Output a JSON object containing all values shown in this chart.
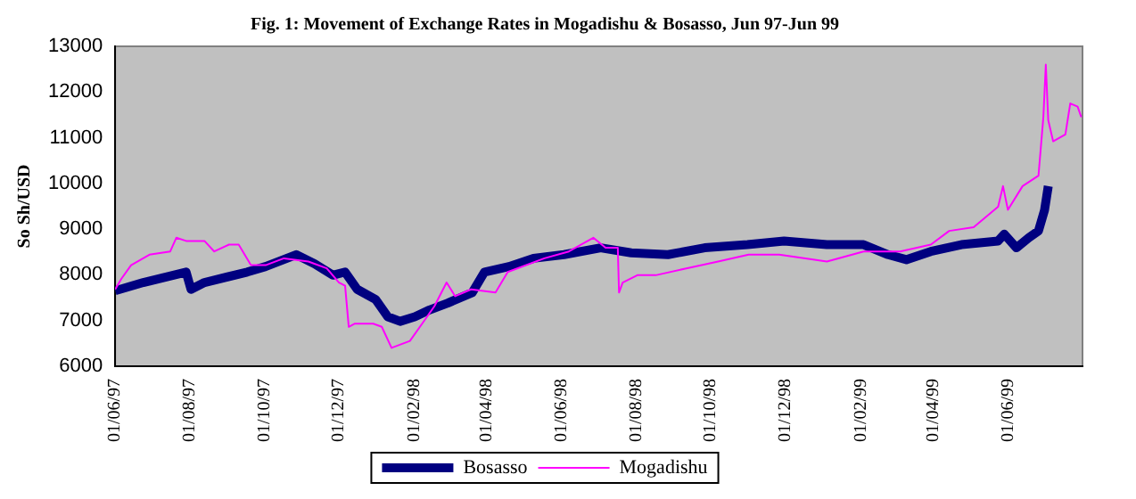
{
  "chart_data": {
    "type": "line",
    "title": "Fig. 1: Movement of Exchange Rates in Mogadishu & Bosasso, Jun 97-Jun 99",
    "ylabel": "So Sh/USD",
    "xlim": [
      "1997-06-01",
      "1999-08-01"
    ],
    "xticks": [
      {
        "value": "1997-06-01",
        "label": "01/06/97"
      },
      {
        "value": "1997-08-01",
        "label": "01/08/97"
      },
      {
        "value": "1997-10-01",
        "label": "01/10/97"
      },
      {
        "value": "1997-12-01",
        "label": "01/12/97"
      },
      {
        "value": "1998-02-01",
        "label": "01/02/98"
      },
      {
        "value": "1998-04-01",
        "label": "01/04/98"
      },
      {
        "value": "1998-06-01",
        "label": "01/06/98"
      },
      {
        "value": "1998-08-01",
        "label": "01/08/98"
      },
      {
        "value": "1998-10-01",
        "label": "01/10/98"
      },
      {
        "value": "1998-12-01",
        "label": "01/12/98"
      },
      {
        "value": "1999-02-01",
        "label": "01/02/99"
      },
      {
        "value": "1999-04-01",
        "label": "01/04/99"
      },
      {
        "value": "1999-06-01",
        "label": "01/06/99"
      },
      {
        "value": "1999-08-01",
        "label": null
      }
    ],
    "ylim": [
      6000,
      13000
    ],
    "yticks": [
      6000,
      7000,
      8000,
      9000,
      10000,
      11000,
      12000,
      13000
    ],
    "grid": false,
    "legend": "bottom",
    "marker": "none",
    "line_style": "solid",
    "series": [
      {
        "name": "Bosasso",
        "color": "#000080",
        "x": [
          "1997-06-01",
          "1997-06-24",
          "1997-07-29",
          "1997-08-02",
          "1997-08-13",
          "1997-09-17",
          "1997-10-02",
          "1997-10-27",
          "1997-11-11",
          "1997-11-26",
          "1997-12-06",
          "1997-12-16",
          "1997-12-31",
          "1998-01-10",
          "1998-01-20",
          "1998-02-01",
          "1998-02-13",
          "1998-02-28",
          "1998-03-20",
          "1998-03-30",
          "1998-04-19",
          "1998-05-09",
          "1998-06-03",
          "1998-07-03",
          "1998-07-28",
          "1998-08-27",
          "1998-09-26",
          "1998-10-31",
          "1998-11-30",
          "1999-01-04",
          "1999-02-03",
          "1999-02-23",
          "1999-03-10",
          "1999-03-30",
          "1999-04-24",
          "1999-05-24",
          "1999-05-29",
          "1999-06-08",
          "1999-06-18",
          "1999-06-26",
          "1999-07-01",
          "1999-07-04"
        ],
        "values": [
          7650,
          7830,
          8060,
          7680,
          7830,
          8060,
          8180,
          8440,
          8240,
          7990,
          8060,
          7680,
          7460,
          7080,
          6980,
          7080,
          7230,
          7380,
          7610,
          8060,
          8180,
          8360,
          8440,
          8590,
          8480,
          8440,
          8590,
          8660,
          8740,
          8660,
          8660,
          8440,
          8330,
          8510,
          8660,
          8740,
          8890,
          8590,
          8810,
          8960,
          9420,
          9940
        ]
      },
      {
        "name": "Mogadishu",
        "color": "#ff00ff",
        "x": [
          "1997-06-01",
          "1997-06-06",
          "1997-06-14",
          "1997-06-29",
          "1997-07-16",
          "1997-07-21",
          "1997-07-29",
          "1997-08-13",
          "1997-08-21",
          "1997-09-02",
          "1997-09-10",
          "1997-09-20",
          "1997-10-02",
          "1997-10-17",
          "1997-11-06",
          "1997-11-21",
          "1997-12-01",
          "1997-12-06",
          "1997-12-09",
          "1997-12-14",
          "1997-12-29",
          "1998-01-05",
          "1998-01-13",
          "1998-01-28",
          "1998-02-07",
          "1998-02-17",
          "1998-02-27",
          "1998-03-06",
          "1998-03-19",
          "1998-04-08",
          "1998-04-18",
          "1998-05-18",
          "1998-06-07",
          "1998-06-27",
          "1998-07-07",
          "1998-07-17",
          "1998-07-18",
          "1998-07-21",
          "1998-08-02",
          "1998-08-17",
          "1998-09-11",
          "1998-10-07",
          "1998-11-01",
          "1998-11-26",
          "1999-01-04",
          "1999-02-03",
          "1999-03-05",
          "1999-03-30",
          "1999-04-14",
          "1999-05-04",
          "1999-05-24",
          "1999-05-28",
          "1999-06-01",
          "1999-06-13",
          "1999-06-26",
          "1999-06-30",
          "1999-07-02",
          "1999-07-04",
          "1999-07-08",
          "1999-07-18",
          "1999-07-22",
          "1999-07-28",
          "1999-07-31"
        ],
        "values": [
          7680,
          7910,
          8210,
          8440,
          8510,
          8810,
          8740,
          8740,
          8510,
          8660,
          8660,
          8210,
          8210,
          8360,
          8290,
          8140,
          7830,
          7760,
          6860,
          6930,
          6930,
          6860,
          6400,
          6550,
          6930,
          7310,
          7830,
          7530,
          7680,
          7610,
          8060,
          8360,
          8510,
          8810,
          8590,
          8590,
          7610,
          7830,
          7990,
          7990,
          8140,
          8290,
          8440,
          8440,
          8290,
          8510,
          8510,
          8660,
          8960,
          9040,
          9490,
          9940,
          9420,
          9940,
          10170,
          11450,
          12600,
          11380,
          10920,
          11070,
          11750,
          11680,
          11450
        ]
      }
    ]
  }
}
